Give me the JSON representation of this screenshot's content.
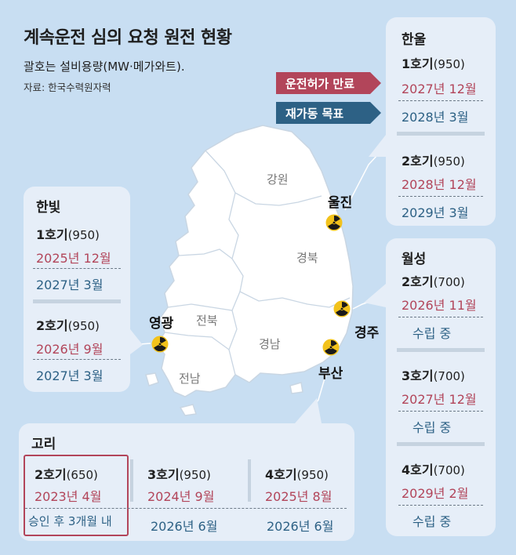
{
  "title": "계속운전 심의 요청 원전 현황",
  "subtitle": "괄호는 설비용량(MW·메가와트).",
  "source": "자료: 한국수력원자력",
  "legend": {
    "expiry_label": "운전허가 만료",
    "restart_label": "재가동 목표",
    "expiry_color": "#b2455a",
    "restart_color": "#2d6185"
  },
  "map": {
    "regions": [
      "강원",
      "경북",
      "전북",
      "경남",
      "전남"
    ],
    "sites": [
      "울진",
      "경주",
      "부산",
      "영광"
    ],
    "marker_icon": "radiation-icon"
  },
  "plants": {
    "hanul": {
      "name": "한울",
      "units": [
        {
          "unit": "1호기",
          "capacity": "(950)",
          "expiry": "2027년 12월",
          "restart": "2028년 3월"
        },
        {
          "unit": "2호기",
          "capacity": "(950)",
          "expiry": "2028년 12월",
          "restart": "2029년 3월"
        }
      ]
    },
    "hanbit": {
      "name": "한빛",
      "units": [
        {
          "unit": "1호기",
          "capacity": "(950)",
          "expiry": "2025년 12월",
          "restart": "2027년 3월"
        },
        {
          "unit": "2호기",
          "capacity": "(950)",
          "expiry": "2026년 9월",
          "restart": "2027년 3월"
        }
      ]
    },
    "wolsong": {
      "name": "월성",
      "units": [
        {
          "unit": "2호기",
          "capacity": "(700)",
          "expiry": "2026년 11월",
          "restart": "수립 중"
        },
        {
          "unit": "3호기",
          "capacity": "(700)",
          "expiry": "2027년 12월",
          "restart": "수립 중"
        },
        {
          "unit": "4호기",
          "capacity": "(700)",
          "expiry": "2029년 2월",
          "restart": "수립 중"
        }
      ]
    },
    "kori": {
      "name": "고리",
      "units": [
        {
          "unit": "2호기",
          "capacity": "(650)",
          "expiry": "2023년 4월",
          "restart": "승인 후 3개월 내"
        },
        {
          "unit": "3호기",
          "capacity": "(950)",
          "expiry": "2024년 9월",
          "restart": "2026년 6월"
        },
        {
          "unit": "4호기",
          "capacity": "(950)",
          "expiry": "2025년 8월",
          "restart": "2026년 6월"
        }
      ]
    }
  }
}
